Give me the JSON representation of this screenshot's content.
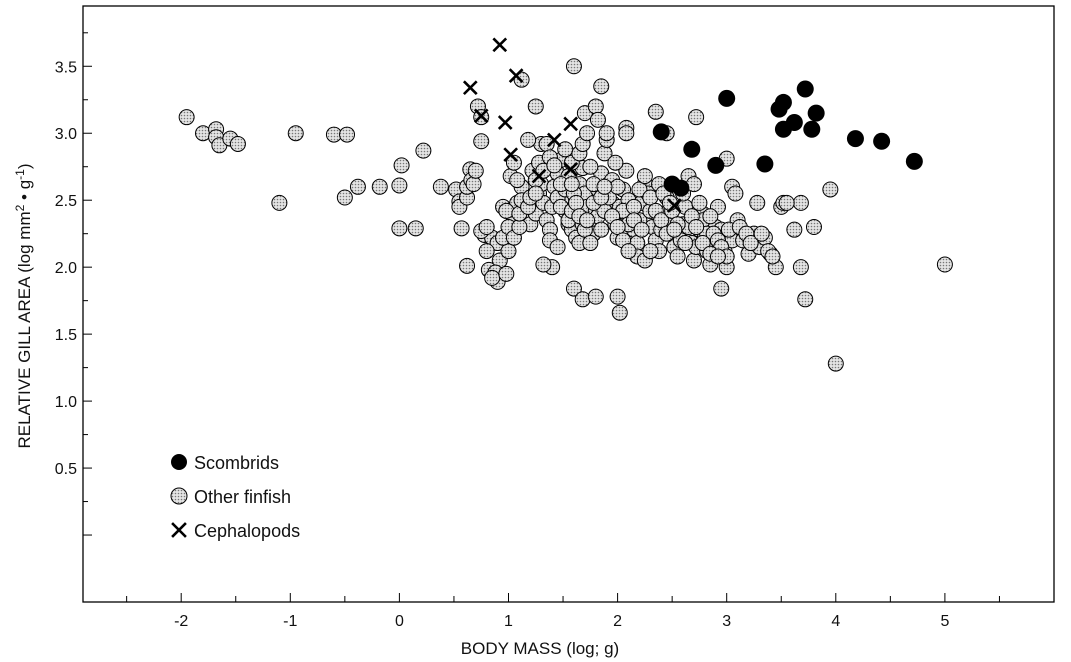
{
  "chart_data": {
    "type": "scatter",
    "xlabel": "BODY MASS (log; g)",
    "ylabel_main": "RELATIVE GILL AREA (log mm",
    "ylabel_sup1": "2",
    "ylabel_mid": " • g",
    "ylabel_sup2": "-1",
    "ylabel_end": ")",
    "xlim": [
      -2.9,
      6.0
    ],
    "ylim": [
      -0.5,
      3.95
    ],
    "x_ticks": [
      -2,
      -1,
      0,
      1,
      2,
      3,
      4,
      5
    ],
    "y_ticks": [
      0.5,
      1.0,
      1.5,
      2.0,
      2.5,
      3.0,
      3.5
    ],
    "x_tick_labels": [
      "-2",
      "-1",
      "0",
      "1",
      "2",
      "3",
      "4",
      "5"
    ],
    "y_tick_labels": [
      "0.5",
      "1.0",
      "1.5",
      "2.0",
      "2.5",
      "3.0",
      "3.5"
    ],
    "legend_position": "lower-left",
    "legend": [
      "Scombrids",
      "Other finfish",
      "Cephalopods"
    ],
    "series": [
      {
        "name": "Scombrids",
        "marker": "filled-circle",
        "color": "#000000",
        "points": [
          [
            2.4,
            3.01
          ],
          [
            2.5,
            2.62
          ],
          [
            2.58,
            2.59
          ],
          [
            2.68,
            2.88
          ],
          [
            2.9,
            2.76
          ],
          [
            3.0,
            3.26
          ],
          [
            3.35,
            2.77
          ],
          [
            3.48,
            3.18
          ],
          [
            3.52,
            3.03
          ],
          [
            3.52,
            3.23
          ],
          [
            3.62,
            3.08
          ],
          [
            3.72,
            3.33
          ],
          [
            3.78,
            3.03
          ],
          [
            3.82,
            3.15
          ],
          [
            4.18,
            2.96
          ],
          [
            4.42,
            2.94
          ],
          [
            4.72,
            2.79
          ]
        ]
      },
      {
        "name": "Other finfish",
        "marker": "stippled-circle",
        "color": "#a8a8a8",
        "points": [
          [
            -1.95,
            3.12
          ],
          [
            -1.8,
            3.0
          ],
          [
            -1.68,
            3.03
          ],
          [
            -1.68,
            2.97
          ],
          [
            -1.65,
            2.91
          ],
          [
            -1.55,
            2.96
          ],
          [
            -1.48,
            2.92
          ],
          [
            -1.1,
            2.48
          ],
          [
            -0.95,
            3.0
          ],
          [
            -0.6,
            2.99
          ],
          [
            -0.48,
            2.99
          ],
          [
            -0.5,
            2.52
          ],
          [
            -0.38,
            2.6
          ],
          [
            -0.18,
            2.6
          ],
          [
            0.0,
            2.61
          ],
          [
            0.02,
            2.76
          ],
          [
            0.0,
            2.29
          ],
          [
            0.15,
            2.29
          ],
          [
            0.22,
            2.87
          ],
          [
            0.38,
            2.6
          ],
          [
            0.52,
            2.58
          ],
          [
            0.55,
            2.49
          ],
          [
            0.55,
            2.45
          ],
          [
            0.57,
            2.29
          ],
          [
            0.62,
            2.52
          ],
          [
            0.62,
            2.6
          ],
          [
            0.65,
            2.73
          ],
          [
            0.66,
            2.65
          ],
          [
            0.68,
            2.62
          ],
          [
            0.7,
            2.72
          ],
          [
            0.62,
            2.01
          ],
          [
            0.78,
            2.24
          ],
          [
            0.85,
            2.22
          ],
          [
            0.9,
            2.18
          ],
          [
            0.92,
            2.05
          ],
          [
            0.8,
            2.12
          ],
          [
            0.75,
            2.27
          ],
          [
            0.8,
            2.3
          ],
          [
            0.82,
            1.98
          ],
          [
            0.88,
            1.96
          ],
          [
            0.9,
            1.89
          ],
          [
            0.85,
            1.92
          ],
          [
            0.98,
            1.95
          ],
          [
            1.0,
            2.12
          ],
          [
            0.95,
            2.22
          ],
          [
            0.72,
            3.2
          ],
          [
            0.75,
            3.12
          ],
          [
            0.75,
            2.94
          ],
          [
            0.95,
            2.45
          ],
          [
            1.0,
            2.42
          ],
          [
            1.05,
            2.35
          ],
          [
            1.08,
            2.48
          ],
          [
            1.12,
            2.6
          ],
          [
            1.15,
            2.42
          ],
          [
            1.18,
            2.36
          ],
          [
            1.2,
            2.32
          ],
          [
            1.25,
            2.4
          ],
          [
            1.28,
            2.55
          ],
          [
            1.3,
            2.62
          ],
          [
            1.32,
            2.48
          ],
          [
            1.35,
            2.35
          ],
          [
            1.38,
            2.28
          ],
          [
            1.4,
            2.45
          ],
          [
            1.42,
            2.6
          ],
          [
            1.45,
            2.7
          ],
          [
            1.48,
            2.8
          ],
          [
            1.5,
            2.52
          ],
          [
            1.52,
            2.42
          ],
          [
            1.55,
            2.32
          ],
          [
            1.58,
            2.28
          ],
          [
            1.6,
            2.38
          ],
          [
            1.62,
            2.5
          ],
          [
            1.65,
            2.62
          ],
          [
            1.68,
            2.74
          ],
          [
            1.7,
            2.55
          ],
          [
            1.72,
            2.45
          ],
          [
            1.75,
            2.35
          ],
          [
            1.78,
            2.25
          ],
          [
            1.8,
            2.42
          ],
          [
            1.82,
            2.58
          ],
          [
            1.85,
            2.7
          ],
          [
            1.88,
            2.85
          ],
          [
            1.9,
            2.95
          ],
          [
            1.92,
            2.62
          ],
          [
            1.95,
            2.48
          ],
          [
            1.98,
            2.32
          ],
          [
            2.0,
            2.22
          ],
          [
            2.02,
            2.45
          ],
          [
            2.05,
            2.58
          ],
          [
            2.08,
            2.72
          ],
          [
            2.1,
            2.5
          ],
          [
            2.12,
            2.38
          ],
          [
            2.15,
            2.28
          ],
          [
            2.18,
            2.18
          ],
          [
            2.2,
            2.35
          ],
          [
            2.22,
            2.48
          ],
          [
            2.25,
            2.62
          ],
          [
            2.28,
            2.55
          ],
          [
            2.3,
            2.42
          ],
          [
            2.32,
            2.3
          ],
          [
            2.35,
            2.2
          ],
          [
            2.38,
            2.12
          ],
          [
            2.4,
            2.28
          ],
          [
            2.42,
            2.4
          ],
          [
            2.45,
            2.52
          ],
          [
            2.48,
            2.35
          ],
          [
            2.5,
            2.25
          ],
          [
            2.52,
            2.15
          ],
          [
            2.55,
            2.08
          ],
          [
            2.58,
            2.2
          ],
          [
            2.6,
            2.32
          ],
          [
            2.62,
            2.45
          ],
          [
            2.65,
            2.3
          ],
          [
            2.68,
            2.18
          ],
          [
            2.7,
            2.05
          ],
          [
            2.72,
            2.15
          ],
          [
            2.75,
            2.28
          ],
          [
            2.78,
            2.4
          ],
          [
            2.8,
            2.22
          ],
          [
            2.82,
            2.12
          ],
          [
            2.85,
            2.02
          ],
          [
            2.88,
            2.15
          ],
          [
            2.9,
            2.3
          ],
          [
            2.92,
            2.45
          ],
          [
            2.95,
            2.28
          ],
          [
            2.98,
            2.12
          ],
          [
            3.0,
            2.0
          ],
          [
            3.05,
            2.2
          ],
          [
            3.1,
            2.35
          ],
          [
            3.15,
            2.2
          ],
          [
            3.2,
            2.1
          ],
          [
            3.25,
            2.25
          ],
          [
            3.3,
            2.15
          ],
          [
            3.35,
            2.22
          ],
          [
            3.4,
            2.1
          ],
          [
            3.45,
            2.0
          ],
          [
            3.5,
            2.45
          ],
          [
            0.98,
            2.42
          ],
          [
            1.0,
            2.3
          ],
          [
            1.05,
            2.22
          ],
          [
            1.1,
            2.3
          ],
          [
            1.02,
            2.68
          ],
          [
            1.05,
            2.78
          ],
          [
            1.08,
            2.65
          ],
          [
            1.1,
            2.4
          ],
          [
            1.12,
            2.5
          ],
          [
            1.18,
            2.45
          ],
          [
            1.2,
            2.52
          ],
          [
            1.22,
            2.72
          ],
          [
            1.25,
            2.65
          ],
          [
            1.28,
            2.78
          ],
          [
            1.3,
            2.92
          ],
          [
            1.32,
            2.72
          ],
          [
            1.35,
            2.92
          ],
          [
            1.38,
            2.82
          ],
          [
            1.42,
            2.76
          ],
          [
            1.45,
            2.52
          ],
          [
            1.48,
            2.45
          ],
          [
            1.52,
            2.58
          ],
          [
            1.55,
            2.35
          ],
          [
            1.58,
            2.42
          ],
          [
            1.62,
            2.22
          ],
          [
            1.65,
            2.18
          ],
          [
            1.68,
            2.32
          ],
          [
            1.7,
            2.28
          ],
          [
            1.75,
            2.18
          ],
          [
            1.55,
            2.68
          ],
          [
            1.58,
            2.78
          ],
          [
            1.6,
            2.55
          ],
          [
            1.65,
            2.85
          ],
          [
            1.68,
            2.92
          ],
          [
            1.72,
            3.0
          ],
          [
            1.75,
            2.75
          ],
          [
            1.78,
            2.62
          ],
          [
            1.8,
            2.48
          ],
          [
            1.82,
            2.38
          ],
          [
            1.85,
            2.28
          ],
          [
            1.88,
            2.42
          ],
          [
            1.92,
            2.52
          ],
          [
            1.95,
            2.65
          ],
          [
            1.98,
            2.78
          ],
          [
            2.0,
            2.6
          ],
          [
            2.05,
            2.42
          ],
          [
            2.1,
            2.32
          ],
          [
            2.15,
            2.45
          ],
          [
            2.2,
            2.58
          ],
          [
            2.25,
            2.68
          ],
          [
            2.3,
            2.52
          ],
          [
            2.35,
            2.42
          ],
          [
            2.4,
            2.35
          ],
          [
            2.45,
            2.25
          ],
          [
            2.5,
            2.42
          ],
          [
            2.55,
            2.32
          ],
          [
            2.6,
            2.55
          ],
          [
            2.65,
            2.68
          ],
          [
            2.7,
            2.62
          ],
          [
            2.75,
            2.48
          ],
          [
            2.78,
            2.35
          ],
          [
            2.82,
            2.25
          ],
          [
            2.85,
            2.38
          ],
          [
            2.88,
            2.25
          ],
          [
            2.92,
            2.2
          ],
          [
            2.95,
            2.15
          ],
          [
            3.0,
            2.08
          ],
          [
            3.02,
            2.28
          ],
          [
            3.05,
            2.6
          ],
          [
            3.08,
            2.55
          ],
          [
            3.12,
            2.3
          ],
          [
            3.18,
            2.25
          ],
          [
            3.22,
            2.18
          ],
          [
            3.28,
            2.48
          ],
          [
            3.32,
            2.25
          ],
          [
            3.38,
            2.12
          ],
          [
            3.42,
            2.08
          ],
          [
            1.12,
            3.4
          ],
          [
            1.25,
            3.2
          ],
          [
            1.18,
            2.95
          ],
          [
            1.6,
            3.5
          ],
          [
            1.7,
            3.15
          ],
          [
            1.8,
            3.2
          ],
          [
            1.82,
            3.1
          ],
          [
            1.85,
            3.35
          ],
          [
            1.9,
            3.0
          ],
          [
            2.08,
            3.04
          ],
          [
            2.08,
            3.0
          ],
          [
            2.35,
            3.16
          ],
          [
            2.45,
            3.0
          ],
          [
            2.72,
            3.12
          ],
          [
            1.4,
            2.0
          ],
          [
            1.6,
            1.84
          ],
          [
            1.68,
            1.76
          ],
          [
            1.8,
            1.78
          ],
          [
            2.0,
            1.78
          ],
          [
            2.02,
            1.66
          ],
          [
            2.95,
            1.84
          ],
          [
            3.0,
            2.81
          ],
          [
            3.68,
            2.48
          ],
          [
            3.52,
            2.48
          ],
          [
            3.55,
            2.48
          ],
          [
            3.68,
            2.0
          ],
          [
            3.62,
            2.28
          ],
          [
            3.72,
            1.76
          ],
          [
            3.95,
            2.58
          ],
          [
            3.8,
            2.3
          ],
          [
            4.0,
            1.28
          ],
          [
            5.0,
            2.02
          ],
          [
            1.32,
            2.02
          ],
          [
            1.38,
            2.2
          ],
          [
            1.45,
            2.15
          ],
          [
            1.25,
            2.55
          ],
          [
            2.18,
            2.08
          ],
          [
            2.25,
            2.05
          ],
          [
            2.3,
            2.12
          ],
          [
            2.38,
            2.62
          ],
          [
            2.42,
            2.55
          ],
          [
            2.48,
            2.48
          ],
          [
            2.52,
            2.28
          ],
          [
            2.62,
            2.18
          ],
          [
            2.68,
            2.38
          ],
          [
            2.72,
            2.3
          ],
          [
            2.78,
            2.18
          ],
          [
            2.85,
            2.1
          ],
          [
            2.92,
            2.08
          ],
          [
            1.48,
            2.62
          ],
          [
            1.52,
            2.88
          ],
          [
            1.58,
            2.62
          ],
          [
            1.62,
            2.48
          ],
          [
            1.65,
            2.38
          ],
          [
            1.72,
            2.35
          ],
          [
            1.78,
            2.48
          ],
          [
            1.85,
            2.52
          ],
          [
            1.88,
            2.6
          ],
          [
            1.95,
            2.38
          ],
          [
            2.0,
            2.3
          ],
          [
            2.05,
            2.2
          ],
          [
            2.1,
            2.12
          ],
          [
            2.15,
            2.35
          ],
          [
            2.22,
            2.28
          ]
        ]
      },
      {
        "name": "Cephalopods",
        "marker": "x",
        "color": "#000000",
        "points": [
          [
            0.65,
            3.34
          ],
          [
            0.75,
            3.13
          ],
          [
            0.92,
            3.66
          ],
          [
            0.97,
            3.08
          ],
          [
            1.02,
            2.84
          ],
          [
            1.07,
            3.43
          ],
          [
            1.28,
            2.68
          ],
          [
            1.42,
            2.95
          ],
          [
            1.57,
            3.07
          ],
          [
            1.57,
            2.73
          ],
          [
            2.52,
            2.46
          ]
        ]
      }
    ]
  }
}
